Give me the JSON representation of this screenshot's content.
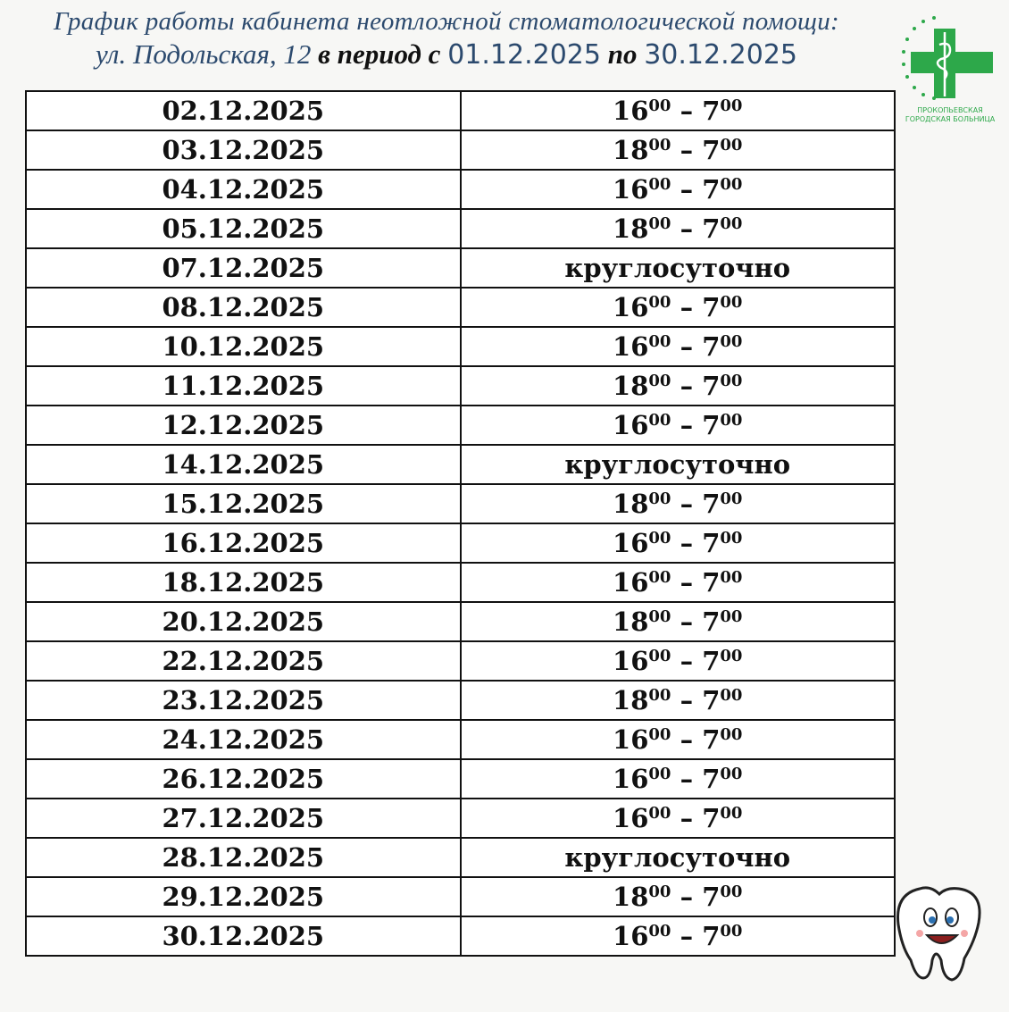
{
  "header": {
    "line1": "График работы кабинета неотложной стоматологической помощи:",
    "address": "ул. Подольская, 12",
    "period_prefix": "в период с",
    "date_from": "01.12.2025",
    "period_middle": "по",
    "date_to": "30.12.2025"
  },
  "logo": {
    "line1": "ПРОКОПЬЕВСКАЯ",
    "line2": "ГОРОДСКАЯ БОЛЬНИЦА"
  },
  "table": {
    "rows": [
      [
        "02.12.2025",
        {
          "from_h": "16",
          "from_m": "00",
          "sep": "–",
          "to_h": "7",
          "to_m": "00"
        }
      ],
      [
        "03.12.2025",
        {
          "from_h": "18",
          "from_m": "00",
          "sep": "–",
          "to_h": "7",
          "to_m": "00"
        }
      ],
      [
        "04.12.2025",
        {
          "from_h": "16",
          "from_m": "00",
          "sep": "–",
          "to_h": "7",
          "to_m": "00"
        }
      ],
      [
        "05.12.2025",
        {
          "from_h": "18",
          "from_m": "00",
          "sep": "–",
          "to_h": "7",
          "to_m": "00"
        }
      ],
      [
        "07.12.2025",
        "круглосуточно"
      ],
      [
        "08.12.2025",
        {
          "from_h": "16",
          "from_m": "00",
          "sep": "–",
          "to_h": "7",
          "to_m": "00"
        }
      ],
      [
        "10.12.2025",
        {
          "from_h": "16",
          "from_m": "00",
          "sep": "–",
          "to_h": "7",
          "to_m": "00"
        }
      ],
      [
        "11.12.2025",
        {
          "from_h": "18",
          "from_m": "00",
          "sep": "–",
          "to_h": "7",
          "to_m": "00"
        }
      ],
      [
        "12.12.2025",
        {
          "from_h": "16",
          "from_m": "00",
          "sep": "–",
          "to_h": "7",
          "to_m": "00"
        }
      ],
      [
        "14.12.2025",
        "круглосуточно"
      ],
      [
        "15.12.2025",
        {
          "from_h": "18",
          "from_m": "00",
          "sep": "–",
          "to_h": "7",
          "to_m": "00"
        }
      ],
      [
        "16.12.2025",
        {
          "from_h": "16",
          "from_m": "00",
          "sep": "–",
          "to_h": "7",
          "to_m": "00"
        }
      ],
      [
        "18.12.2025",
        {
          "from_h": "16",
          "from_m": "00",
          "sep": "–",
          "to_h": "7",
          "to_m": "00"
        }
      ],
      [
        "20.12.2025",
        {
          "from_h": "18",
          "from_m": "00",
          "sep": "–",
          "to_h": "7",
          "to_m": "00"
        }
      ],
      [
        "22.12.2025",
        {
          "from_h": "16",
          "from_m": "00",
          "sep": "–",
          "to_h": "7",
          "to_m": "00"
        }
      ],
      [
        "23.12.2025",
        {
          "from_h": "18",
          "from_m": "00",
          "sep": "–",
          "to_h": "7",
          "to_m": "00"
        }
      ],
      [
        "24.12.2025",
        {
          "from_h": "16",
          "from_m": "00",
          "sep": "–",
          "to_h": "7",
          "to_m": "00"
        }
      ],
      [
        "26.12.2025",
        {
          "from_h": "16",
          "from_m": "00",
          "sep": "–",
          "to_h": "7",
          "to_m": "00"
        }
      ],
      [
        "27.12.2025",
        {
          "from_h": "16",
          "from_m": "00",
          "sep": "–",
          "to_h": "7",
          "to_m": "00"
        }
      ],
      [
        "28.12.2025",
        "круглосуточно"
      ],
      [
        "29.12.2025",
        {
          "from_h": "18",
          "from_m": "00",
          "sep": "–",
          "to_h": "7",
          "to_m": "00"
        }
      ],
      [
        "30.12.2025",
        {
          "from_h": "16",
          "from_m": "00",
          "sep": "–",
          "to_h": "7",
          "to_m": "00"
        }
      ]
    ]
  }
}
